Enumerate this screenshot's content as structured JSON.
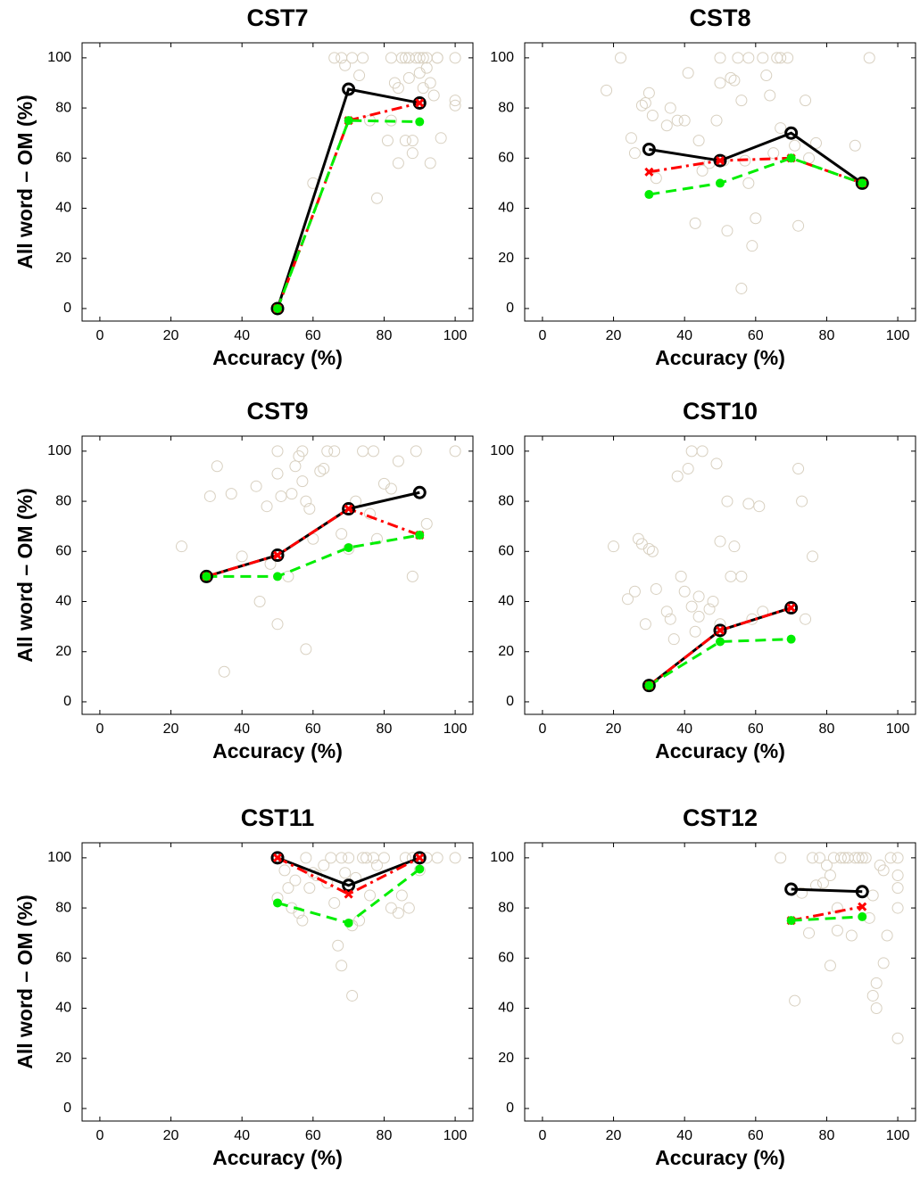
{
  "chart_data": [
    {
      "type": "line",
      "title": "CST7",
      "xlabel": "Accuracy (%)",
      "ylabel": "All word – OM (%)",
      "xlim": [
        -5,
        105
      ],
      "ylim": [
        -5,
        106
      ],
      "xticks": [
        0,
        20,
        40,
        60,
        80,
        100
      ],
      "yticks": [
        0,
        20,
        40,
        60,
        80,
        100
      ],
      "x": [
        50,
        70,
        90
      ],
      "series": [
        {
          "color": "#000000",
          "dash": "solid",
          "marker": "open-circle",
          "values": [
            0,
            87.5,
            82
          ]
        },
        {
          "color": "#ff0000",
          "dash": "dashdot",
          "marker": "x",
          "values": [
            0,
            75,
            82
          ]
        },
        {
          "color": "#00ee00",
          "dash": "dashed",
          "marker": "dot",
          "values": [
            0,
            75,
            74.5
          ]
        }
      ],
      "points": {
        "color": "#d8d0c0",
        "x": [
          60,
          66,
          68,
          69,
          71,
          74,
          73,
          76,
          78,
          81,
          82,
          82,
          83,
          84,
          84,
          85,
          86,
          86,
          87,
          87,
          88,
          88,
          89,
          90,
          90,
          91,
          91,
          92,
          92,
          93,
          93,
          94,
          95,
          95,
          96,
          100,
          100,
          100
        ],
        "y": [
          50,
          100,
          100,
          97,
          100,
          100,
          93,
          75,
          44,
          67,
          75,
          100,
          90,
          58,
          88,
          100,
          100,
          67,
          100,
          92,
          67,
          62,
          100,
          100,
          94,
          100,
          88,
          100,
          96,
          90,
          58,
          85,
          100,
          100,
          68,
          100,
          83,
          81
        ]
      }
    },
    {
      "type": "line",
      "title": "CST8",
      "xlabel": "Accuracy (%)",
      "xlim": [
        -5,
        105
      ],
      "ylim": [
        -5,
        106
      ],
      "xticks": [
        0,
        20,
        40,
        60,
        80,
        100
      ],
      "yticks": [
        0,
        20,
        40,
        60,
        80,
        100
      ],
      "x": [
        30,
        50,
        70,
        90
      ],
      "series": [
        {
          "color": "#000000",
          "dash": "solid",
          "marker": "open-circle",
          "values": [
            63.5,
            59,
            70,
            50
          ]
        },
        {
          "color": "#ff0000",
          "dash": "dashdot",
          "marker": "x",
          "values": [
            54.5,
            59,
            60,
            50
          ]
        },
        {
          "color": "#00ee00",
          "dash": "dashed",
          "marker": "dot",
          "values": [
            45.5,
            50,
            60,
            50
          ]
        }
      ],
      "points": {
        "color": "#d8d0c0",
        "x": [
          18,
          22,
          25,
          26,
          28,
          29,
          30,
          31,
          32,
          35,
          36,
          38,
          40,
          41,
          43,
          44,
          45,
          47,
          49,
          50,
          50,
          51,
          52,
          53,
          54,
          55,
          56,
          56,
          57,
          58,
          58,
          59,
          60,
          62,
          63,
          64,
          65,
          66,
          67,
          67,
          69,
          71,
          72,
          74,
          75,
          77,
          88,
          92
        ],
        "y": [
          87,
          100,
          68,
          62,
          81,
          82,
          86,
          77,
          52,
          73,
          80,
          75,
          75,
          94,
          34,
          67,
          55,
          58,
          75,
          90,
          100,
          59,
          31,
          92,
          91,
          100,
          8,
          83,
          59,
          50,
          100,
          25,
          36,
          100,
          93,
          85,
          62,
          100,
          72,
          100,
          100,
          65,
          33,
          83,
          60,
          66,
          65,
          100
        ]
      }
    },
    {
      "type": "line",
      "title": "CST9",
      "xlabel": "Accuracy (%)",
      "ylabel": "All word – OM (%)",
      "xlim": [
        -5,
        105
      ],
      "ylim": [
        -5,
        106
      ],
      "xticks": [
        0,
        20,
        40,
        60,
        80,
        100
      ],
      "yticks": [
        0,
        20,
        40,
        60,
        80,
        100
      ],
      "x": [
        30,
        50,
        70,
        90
      ],
      "series": [
        {
          "color": "#000000",
          "dash": "solid",
          "marker": "open-circle",
          "values": [
            50,
            58.5,
            77,
            83.5
          ]
        },
        {
          "color": "#ff0000",
          "dash": "dashdot",
          "marker": "x",
          "values": [
            50,
            58.5,
            77,
            66.5
          ]
        },
        {
          "color": "#00ee00",
          "dash": "dashed",
          "marker": "dot",
          "values": [
            50,
            50,
            61.5,
            66.5
          ]
        }
      ],
      "points": {
        "color": "#d8d0c0",
        "x": [
          23,
          31,
          33,
          35,
          37,
          40,
          44,
          45,
          47,
          48,
          50,
          50,
          50,
          51,
          53,
          54,
          55,
          56,
          57,
          57,
          58,
          58,
          59,
          60,
          62,
          63,
          64,
          66,
          68,
          70,
          72,
          74,
          76,
          77,
          78,
          80,
          82,
          84,
          88,
          89,
          92,
          100
        ],
        "y": [
          62,
          82,
          94,
          12,
          83,
          58,
          86,
          40,
          78,
          55,
          31,
          100,
          91,
          82,
          50,
          83,
          94,
          98,
          88,
          100,
          80,
          21,
          77,
          65,
          92,
          93,
          100,
          100,
          67,
          61,
          80,
          100,
          75,
          100,
          65,
          87,
          85,
          96,
          50,
          100,
          71,
          100
        ]
      }
    },
    {
      "type": "line",
      "title": "CST10",
      "xlabel": "Accuracy (%)",
      "xlim": [
        -5,
        105
      ],
      "ylim": [
        -5,
        106
      ],
      "xticks": [
        0,
        20,
        40,
        60,
        80,
        100
      ],
      "yticks": [
        0,
        20,
        40,
        60,
        80,
        100
      ],
      "x": [
        30,
        50,
        70
      ],
      "series": [
        {
          "color": "#000000",
          "dash": "solid",
          "marker": "open-circle",
          "values": [
            6.5,
            28.5,
            37.5
          ]
        },
        {
          "color": "#ff0000",
          "dash": "dashdot",
          "marker": "x",
          "values": [
            6.5,
            28.5,
            37.5
          ]
        },
        {
          "color": "#00ee00",
          "dash": "dashed",
          "marker": "dot",
          "values": [
            6.5,
            24,
            25
          ]
        }
      ],
      "points": {
        "color": "#d8d0c0",
        "x": [
          20,
          24,
          26,
          27,
          28,
          29,
          30,
          31,
          32,
          35,
          36,
          37,
          38,
          39,
          40,
          41,
          42,
          42,
          43,
          44,
          44,
          45,
          47,
          48,
          49,
          50,
          50,
          52,
          53,
          54,
          56,
          58,
          59,
          61,
          62,
          72,
          73,
          74,
          76
        ],
        "y": [
          62,
          41,
          44,
          65,
          63,
          31,
          61,
          60,
          45,
          36,
          33,
          25,
          90,
          50,
          44,
          93,
          100,
          38,
          28,
          34,
          42,
          100,
          37,
          40,
          95,
          64,
          31,
          80,
          50,
          62,
          50,
          79,
          33,
          78,
          36,
          93,
          80,
          33,
          58
        ]
      }
    },
    {
      "type": "line",
      "title": "CST11",
      "xlabel": "Accuracy (%)",
      "ylabel": "All word – OM (%)",
      "xlim": [
        -5,
        105
      ],
      "ylim": [
        -5,
        106
      ],
      "xticks": [
        0,
        20,
        40,
        60,
        80,
        100
      ],
      "yticks": [
        0,
        20,
        40,
        60,
        80,
        100
      ],
      "x": [
        50,
        70,
        90
      ],
      "series": [
        {
          "color": "#000000",
          "dash": "solid",
          "marker": "open-circle",
          "values": [
            100,
            89,
            100
          ]
        },
        {
          "color": "#ff0000",
          "dash": "dashdot",
          "marker": "x",
          "values": [
            100,
            85.5,
            100
          ]
        },
        {
          "color": "#00ee00",
          "dash": "dashed",
          "marker": "dot",
          "values": [
            82,
            74,
            95.5
          ]
        }
      ],
      "points": {
        "color": "#d8d0c0",
        "x": [
          50,
          52,
          53,
          54,
          55,
          56,
          57,
          58,
          59,
          60,
          61,
          63,
          64,
          65,
          66,
          67,
          68,
          68,
          69,
          70,
          71,
          71,
          72,
          73,
          74,
          75,
          76,
          77,
          78,
          80,
          82,
          84,
          85,
          86,
          87,
          88,
          90,
          92,
          95,
          100
        ],
        "y": [
          84,
          95,
          88,
          80,
          91,
          78,
          75,
          100,
          88,
          94,
          93,
          97,
          90,
          100,
          82,
          65,
          100,
          57,
          94,
          100,
          45,
          73,
          92,
          75,
          100,
          100,
          85,
          100,
          97,
          100,
          80,
          78,
          85,
          100,
          80,
          100,
          95,
          100,
          100,
          100
        ]
      }
    },
    {
      "type": "line",
      "title": "CST12",
      "xlabel": "Accuracy (%)",
      "xlim": [
        -5,
        105
      ],
      "ylim": [
        -5,
        106
      ],
      "xticks": [
        0,
        20,
        40,
        60,
        80,
        100
      ],
      "yticks": [
        0,
        20,
        40,
        60,
        80,
        100
      ],
      "x": [
        70,
        90
      ],
      "series": [
        {
          "color": "#000000",
          "dash": "solid",
          "marker": "open-circle",
          "values": [
            87.5,
            86.5
          ]
        },
        {
          "color": "#ff0000",
          "dash": "dashdot",
          "marker": "x",
          "values": [
            75,
            80.5
          ]
        },
        {
          "color": "#00ee00",
          "dash": "dashed",
          "marker": "dot",
          "values": [
            75,
            76.5
          ]
        }
      ],
      "points": {
        "color": "#d8d0c0",
        "x": [
          67,
          71,
          73,
          75,
          76,
          77,
          78,
          79,
          80,
          81,
          81,
          82,
          83,
          83,
          84,
          85,
          86,
          87,
          88,
          89,
          90,
          91,
          92,
          93,
          93,
          94,
          94,
          95,
          96,
          96,
          97,
          98,
          100,
          100,
          100,
          100,
          100
        ],
        "y": [
          100,
          43,
          86,
          70,
          100,
          89,
          100,
          90,
          97,
          57,
          93,
          100,
          71,
          80,
          100,
          100,
          100,
          69,
          100,
          100,
          100,
          100,
          76,
          45,
          85,
          40,
          50,
          97,
          58,
          95,
          69,
          100,
          100,
          88,
          80,
          28,
          93
        ]
      }
    }
  ]
}
